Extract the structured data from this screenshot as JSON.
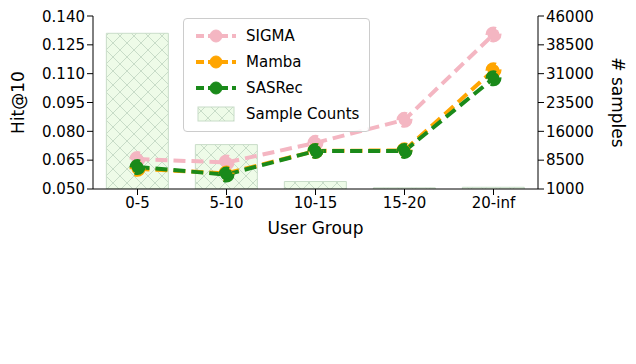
{
  "chart_data": {
    "type": "combo",
    "x_label": "User Group",
    "y_label": "Hit@10",
    "y2_label": "# samples",
    "categories": [
      "0-5",
      "5-10",
      "10-15",
      "15-20",
      "20-inf"
    ],
    "ylim": [
      0.05,
      0.14
    ],
    "yticks": [
      {
        "value": 0.05,
        "label": "0.050"
      },
      0.065,
      {
        "value": 0.08,
        "label": "0.080"
      },
      0.095,
      {
        "value": 0.11,
        "label": "0.110"
      },
      0.125,
      {
        "value": 0.14,
        "label": "0.140"
      }
    ],
    "y2lim": [
      1000,
      46000
    ],
    "y2ticks": [
      1000,
      8500,
      16000,
      23500,
      31000,
      38500,
      46000
    ],
    "grid": false,
    "legend": "upper center",
    "series": [
      {
        "name": "SIGMA",
        "type": "line",
        "axis": "y",
        "color": "#f4b6c2",
        "marker": "o",
        "line_style": "dashed",
        "values": [
          0.0656,
          0.0638,
          0.074,
          0.086,
          0.1304
        ]
      },
      {
        "name": "Mamba",
        "type": "line",
        "axis": "y",
        "color": "#ffa500",
        "marker": "o",
        "line_style": "dashed",
        "values": [
          0.0605,
          0.0581,
          0.0698,
          0.0701,
          0.1118
        ]
      },
      {
        "name": "SASRec",
        "type": "line",
        "axis": "y",
        "color": "#1a8a1a",
        "marker": "o",
        "line_style": "dashed",
        "values": [
          0.0614,
          0.0575,
          0.0698,
          0.0698,
          0.1076
        ]
      },
      {
        "name": "Sample Counts",
        "type": "bar",
        "axis": "y2",
        "color": "#eefbe8",
        "values": [
          41500,
          12550,
          2950,
          1300,
          1450
        ]
      }
    ]
  }
}
